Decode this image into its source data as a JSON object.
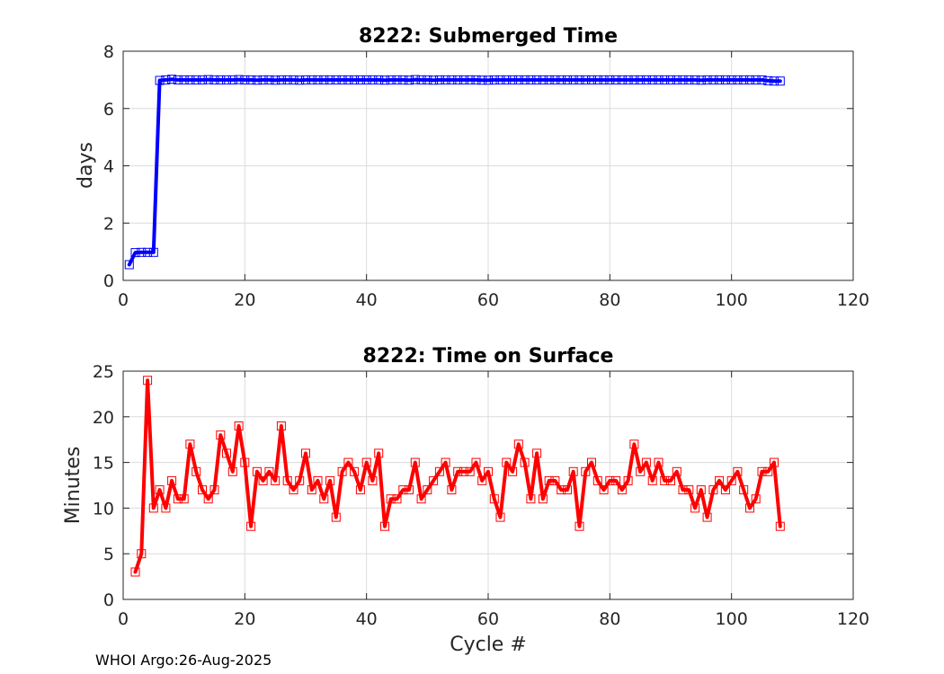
{
  "footer": "WHOI Argo:26-Aug-2025",
  "chart_data": [
    {
      "type": "line",
      "title": "8222: Submerged Time",
      "xlabel": "",
      "ylabel": "days",
      "xlim": [
        0,
        120
      ],
      "ylim": [
        0,
        8
      ],
      "xticks": [
        0,
        20,
        40,
        60,
        80,
        100,
        120
      ],
      "yticks": [
        0,
        2,
        4,
        6,
        8
      ],
      "grid": true,
      "series": [
        {
          "name": "Submerged Time",
          "color": "#0000ff",
          "marker": "square",
          "x": [
            1,
            2,
            3,
            4,
            5,
            6,
            7,
            8,
            9,
            10,
            11,
            12,
            13,
            14,
            15,
            16,
            17,
            18,
            19,
            20,
            21,
            22,
            23,
            24,
            25,
            26,
            27,
            28,
            29,
            30,
            31,
            32,
            33,
            34,
            35,
            36,
            37,
            38,
            39,
            40,
            41,
            42,
            43,
            44,
            45,
            46,
            47,
            48,
            49,
            50,
            51,
            52,
            53,
            54,
            55,
            56,
            57,
            58,
            59,
            60,
            61,
            62,
            63,
            64,
            65,
            66,
            67,
            68,
            69,
            70,
            71,
            72,
            73,
            74,
            75,
            76,
            77,
            78,
            79,
            80,
            81,
            82,
            83,
            84,
            85,
            86,
            87,
            88,
            89,
            90,
            91,
            92,
            93,
            94,
            95,
            96,
            97,
            98,
            99,
            100,
            101,
            102,
            103,
            104,
            105,
            106,
            107,
            108
          ],
          "y": [
            0.55,
            0.97,
            0.98,
            0.98,
            0.98,
            6.98,
            7.0,
            7.02,
            7.0,
            7.0,
            7.0,
            7.0,
            7.0,
            7.01,
            7.0,
            7.0,
            7.0,
            7.0,
            7.01,
            7.0,
            7.0,
            6.99,
            7.0,
            7.0,
            6.99,
            7.0,
            7.0,
            7.0,
            6.99,
            7.0,
            7.0,
            7.0,
            7.0,
            7.0,
            7.0,
            7.0,
            7.0,
            7.0,
            7.0,
            7.0,
            7.0,
            7.0,
            6.99,
            7.0,
            7.0,
            7.0,
            6.99,
            7.01,
            7.0,
            7.0,
            6.99,
            7.0,
            7.0,
            7.0,
            7.0,
            7.0,
            7.0,
            7.0,
            6.99,
            6.99,
            7.0,
            7.0,
            7.0,
            7.0,
            7.0,
            7.0,
            7.0,
            7.0,
            7.0,
            7.0,
            7.0,
            7.0,
            7.0,
            7.0,
            7.0,
            7.0,
            7.0,
            7.0,
            7.0,
            7.0,
            7.0,
            7.0,
            7.0,
            7.0,
            7.0,
            7.0,
            7.0,
            7.0,
            7.0,
            7.0,
            7.0,
            7.0,
            7.0,
            7.0,
            6.99,
            7.0,
            7.0,
            7.0,
            7.0,
            7.0,
            7.0,
            7.0,
            7.0,
            7.0,
            7.0,
            6.97,
            6.96,
            6.96
          ]
        }
      ]
    },
    {
      "type": "line",
      "title": "8222: Time on Surface",
      "xlabel": "Cycle #",
      "ylabel": "Minutes",
      "xlim": [
        0,
        120
      ],
      "ylim": [
        0,
        25
      ],
      "xticks": [
        0,
        20,
        40,
        60,
        80,
        100,
        120
      ],
      "yticks": [
        0,
        5,
        10,
        15,
        20,
        25
      ],
      "grid": true,
      "series": [
        {
          "name": "Time on Surface",
          "color": "#ff0000",
          "marker": "square",
          "x": [
            2,
            3,
            4,
            5,
            6,
            7,
            8,
            9,
            10,
            11,
            12,
            13,
            14,
            15,
            16,
            17,
            18,
            19,
            20,
            21,
            22,
            23,
            24,
            25,
            26,
            27,
            28,
            29,
            30,
            31,
            32,
            33,
            34,
            35,
            36,
            37,
            38,
            39,
            40,
            41,
            42,
            43,
            44,
            45,
            46,
            47,
            48,
            49,
            50,
            51,
            52,
            53,
            54,
            55,
            56,
            57,
            58,
            59,
            60,
            61,
            62,
            63,
            64,
            65,
            66,
            67,
            68,
            69,
            70,
            71,
            72,
            73,
            74,
            75,
            76,
            77,
            78,
            79,
            80,
            81,
            82,
            83,
            84,
            85,
            86,
            87,
            88,
            89,
            90,
            91,
            92,
            93,
            94,
            95,
            96,
            97,
            98,
            99,
            100,
            101,
            102,
            103,
            104,
            105,
            106,
            107,
            108
          ],
          "y": [
            3,
            5,
            24,
            10,
            12,
            10,
            13,
            11,
            11,
            17,
            14,
            12,
            11,
            12,
            18,
            16,
            14,
            19,
            15,
            8,
            14,
            13,
            14,
            13,
            19,
            13,
            12,
            13,
            16,
            12,
            13,
            11,
            13,
            9,
            14,
            15,
            14,
            12,
            15,
            13,
            16,
            8,
            11,
            11,
            12,
            12,
            15,
            11,
            12,
            13,
            14,
            15,
            12,
            14,
            14,
            14,
            15,
            13,
            14,
            11,
            9,
            15,
            14,
            17,
            15,
            11,
            16,
            11,
            13,
            13,
            12,
            12,
            14,
            8,
            14,
            15,
            13,
            12,
            13,
            13,
            12,
            13,
            17,
            14,
            15,
            13,
            15,
            13,
            13,
            14,
            12,
            12,
            10,
            12,
            9,
            12,
            13,
            12,
            13,
            14,
            12,
            10,
            11,
            14,
            14,
            15,
            8
          ]
        }
      ]
    }
  ]
}
